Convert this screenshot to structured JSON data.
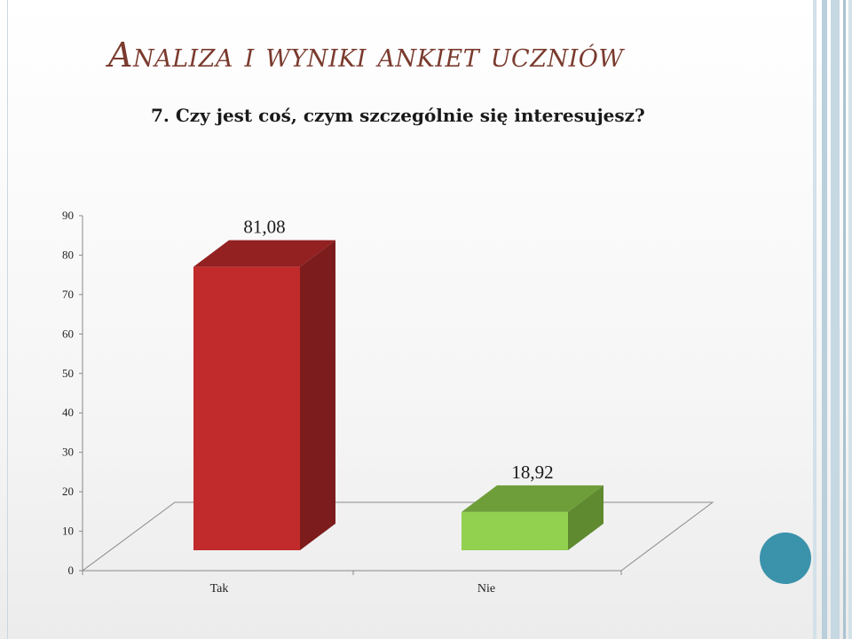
{
  "slide": {
    "title": "Analiza i wyniki ankiet uczniów",
    "question": "7. Czy jest coś, czym szczególnie się interesujesz?"
  },
  "colors": {
    "title": "#7a3b2e",
    "accent_circle": "#3b93ab",
    "frame_blue": "#b9cfdb"
  },
  "chart_data": {
    "type": "bar",
    "style": "3d-column",
    "categories": [
      "Tak",
      "Nie"
    ],
    "values": [
      81.08,
      18.92
    ],
    "data_labels": [
      "81,08",
      "18,92"
    ],
    "ylim": [
      0,
      90
    ],
    "yticks": [
      0,
      10,
      20,
      30,
      40,
      50,
      60,
      70,
      80,
      90
    ],
    "grid": false,
    "legend": "none",
    "bar_colors": [
      {
        "front": "#c22b2b",
        "top": "#932121",
        "side": "#7d1c1c"
      },
      {
        "front": "#92d050",
        "top": "#6e9e3a",
        "side": "#5f8a30"
      }
    ]
  }
}
